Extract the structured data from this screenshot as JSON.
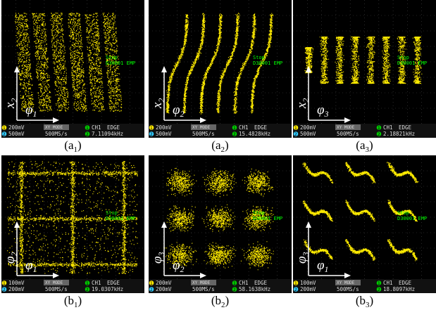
{
  "panels": [
    {
      "caption": {
        "open": "(a",
        "sub": "1",
        "close": ")"
      },
      "y_label": {
        "main": "x",
        "sub": "2"
      },
      "x_label": {
        "main": "φ",
        "sub": "1"
      },
      "overlay": [
        "Stop",
        "D30001 EMP"
      ],
      "status": {
        "ch1_tag": "1",
        "ch1": "200mV",
        "ch2_tag": "2",
        "ch2": "500mV",
        "mode": "XY MODE",
        "rate": "500MS/s",
        "trig_tag": "1",
        "trig_src": "CH1",
        "trig_type": "EDGE",
        "freq_tag": "2",
        "freq": "7.11094kHz"
      }
    },
    {
      "caption": {
        "open": "(a",
        "sub": "2",
        "close": ")"
      },
      "y_label": {
        "main": "x",
        "sub": "2"
      },
      "x_label": {
        "main": "φ",
        "sub": "2"
      },
      "overlay": [
        "Stop",
        "D30001 EMP"
      ],
      "status": {
        "ch1_tag": "1",
        "ch1": "200mV",
        "ch2_tag": "2",
        "ch2": "500mV",
        "mode": "XY MODE",
        "rate": "500MS/s",
        "trig_tag": "1",
        "trig_src": "CH1",
        "trig_type": "EDGE",
        "freq_tag": "2",
        "freq": "15.4828kHz"
      }
    },
    {
      "caption": {
        "open": "(a",
        "sub": "3",
        "close": ")"
      },
      "y_label": {
        "main": "x",
        "sub": "2"
      },
      "x_label": {
        "main": "φ",
        "sub": "3"
      },
      "overlay": [
        "Stop",
        "D30001 EMP"
      ],
      "status": {
        "ch1_tag": "1",
        "ch1": "200mV",
        "ch2_tag": "2",
        "ch2": "500mV",
        "mode": "XY MODE",
        "rate": "500MS/s",
        "trig_tag": "1",
        "trig_src": "CH1",
        "trig_type": "EDGE",
        "freq_tag": "2",
        "freq": "2.18821kHz"
      }
    },
    {
      "caption": {
        "open": "(b",
        "sub": "1",
        "close": ")"
      },
      "y_label": {
        "main": "φ",
        "sub": "2"
      },
      "x_label": {
        "main": "φ",
        "sub": "1"
      },
      "overlay": [
        "Stop",
        "D30001 EMP"
      ],
      "status": {
        "ch1_tag": "1",
        "ch1": "100mV",
        "ch2_tag": "2",
        "ch2": "200mV",
        "mode": "XY MODE",
        "rate": "500MS/s",
        "trig_tag": "1",
        "trig_src": "CH1",
        "trig_type": "EDGE",
        "freq_tag": "2",
        "freq": "19.0307kHz"
      }
    },
    {
      "caption": {
        "open": "(b",
        "sub": "2",
        "close": ")"
      },
      "y_label": {
        "main": "φ",
        "sub": "3"
      },
      "x_label": {
        "main": "φ",
        "sub": "2"
      },
      "overlay": [
        "Stop",
        "D30001 EMP"
      ],
      "status": {
        "ch1_tag": "1",
        "ch1": "200mV",
        "ch2_tag": "2",
        "ch2": "200mV",
        "mode": "XY MODE",
        "rate": "500MS/s",
        "trig_tag": "1",
        "trig_src": "CH1",
        "trig_type": "EDGE",
        "freq_tag": "2",
        "freq": "58.1638kHz"
      }
    },
    {
      "caption": {
        "open": "(b",
        "sub": "3",
        "close": ")"
      },
      "y_label": {
        "main": "φ",
        "sub": "3"
      },
      "x_label": {
        "main": "φ",
        "sub": "1"
      },
      "overlay": [
        "Stop",
        "D30001 EMP"
      ],
      "status": {
        "ch1_tag": "1",
        "ch1": "100mV",
        "ch2_tag": "2",
        "ch2": "200mV",
        "mode": "XY MODE",
        "rate": "500MS/s",
        "trig_tag": "1",
        "trig_src": "CH1",
        "trig_type": "EDGE",
        "freq_tag": "2",
        "freq": "18.8097kHz"
      }
    }
  ]
}
